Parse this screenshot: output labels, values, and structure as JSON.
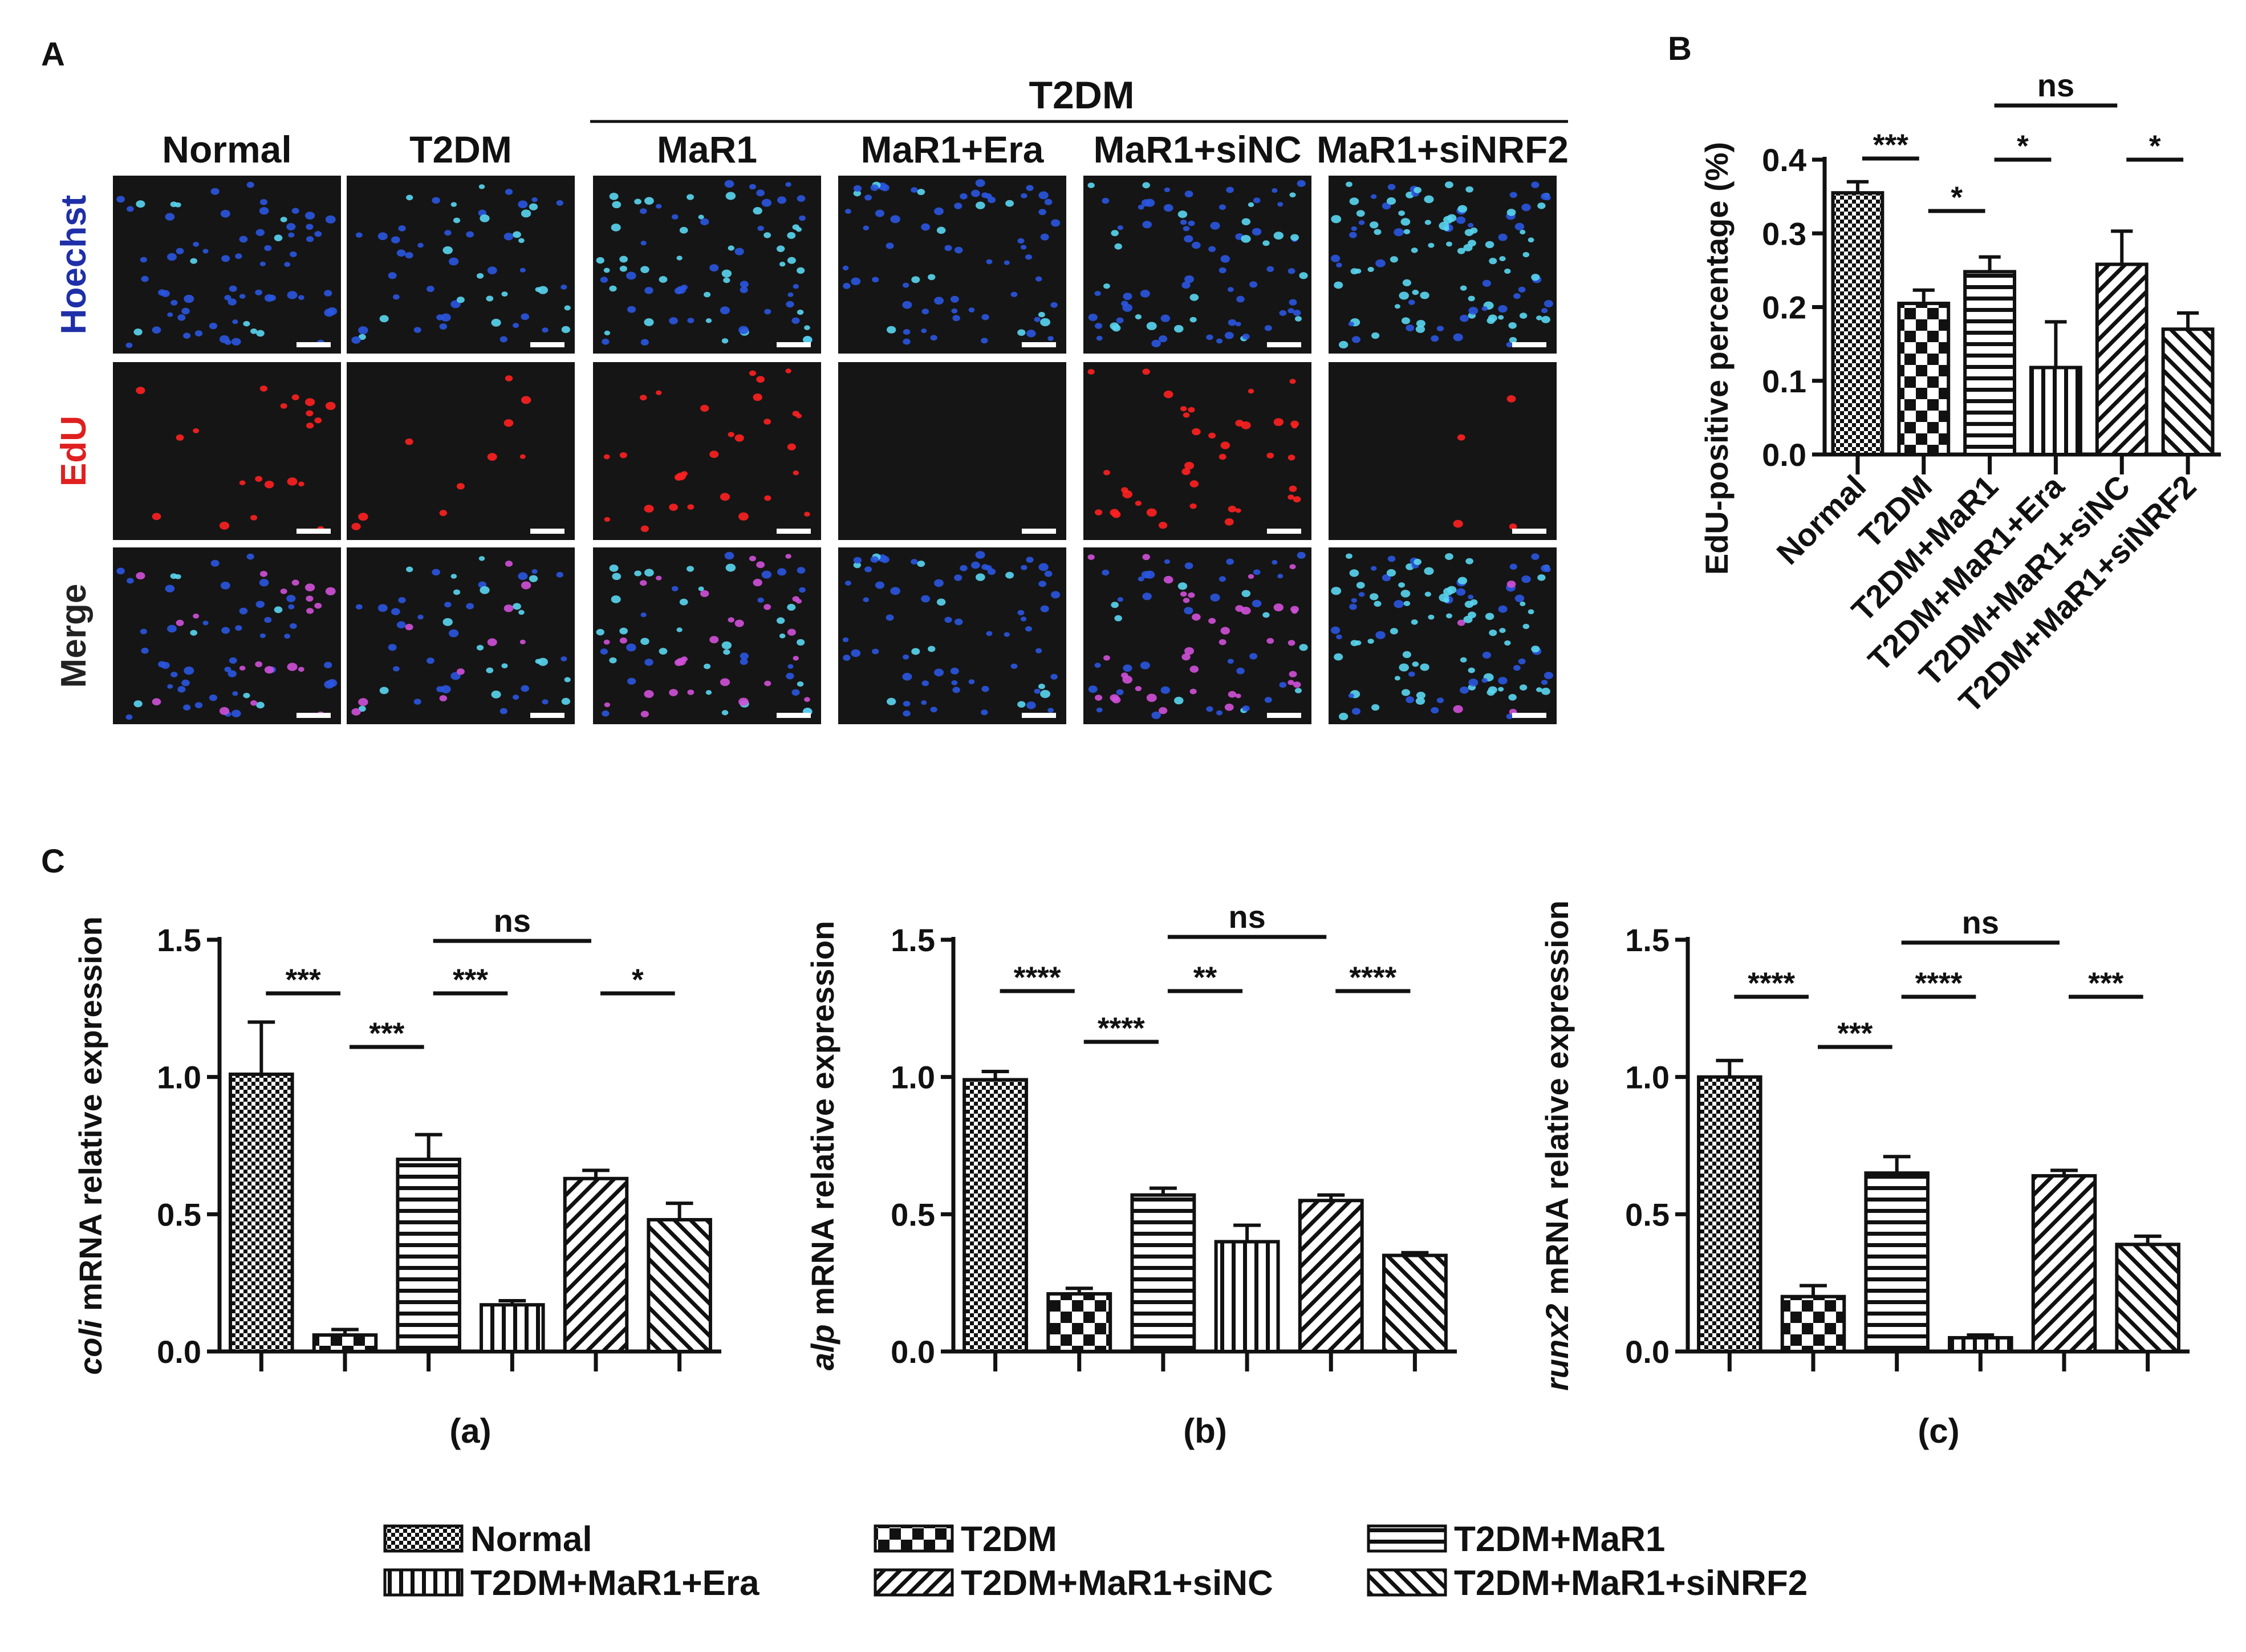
{
  "panel_labels": {
    "a": "A",
    "b": "B",
    "c": "C"
  },
  "panel_a": {
    "group_header": "T2DM",
    "column_labels": [
      "Normal",
      "T2DM",
      "MaR1",
      "MaR1+Era",
      "MaR1+siNC",
      "MaR1+siNRF2"
    ],
    "row_labels": [
      "Hoechst",
      "EdU",
      "Merge"
    ],
    "row_label_colors": [
      "#1f2fa8",
      "#e02020",
      "#222222"
    ]
  },
  "chart_data": [
    {
      "id": "B",
      "type": "bar",
      "title": "",
      "xlabel": "",
      "ylabel": "EdU-positive percentage (%)",
      "ylabel_italic_prefix": "",
      "ylim": [
        0,
        0.4
      ],
      "yticks": [
        0.0,
        0.1,
        0.2,
        0.3,
        0.4
      ],
      "ytick_labels": [
        "0.0",
        "0.1",
        "0.2",
        "0.3",
        "0.4"
      ],
      "categories": [
        "Normal",
        "T2DM",
        "T2DM+MaR1",
        "T2DM+MaR1+Era",
        "T2DM+MaR1+siNC",
        "T2DM+MaR1+siNRF2"
      ],
      "values": [
        0.355,
        0.205,
        0.248,
        0.118,
        0.258,
        0.17
      ],
      "errors": [
        0.015,
        0.018,
        0.02,
        0.062,
        0.045,
        0.022
      ],
      "significance": [
        {
          "from": 0,
          "to": 1,
          "label": "***"
        },
        {
          "from": 1,
          "to": 2,
          "label": "*"
        },
        {
          "from": 2,
          "to": 3,
          "label": "*"
        },
        {
          "from": 2,
          "to": 4,
          "label": "ns"
        },
        {
          "from": 4,
          "to": 5,
          "label": "*"
        }
      ]
    },
    {
      "id": "C-a",
      "type": "bar",
      "title": "",
      "sublabel": "(a)",
      "ylabel_italic_prefix": "coli",
      "ylabel": " mRNA relative expression",
      "ylim": [
        0,
        1.5
      ],
      "yticks": [
        0.0,
        0.5,
        1.0,
        1.5
      ],
      "ytick_labels": [
        "0.0",
        "0.5",
        "1.0",
        "1.5"
      ],
      "categories": [
        "Normal",
        "T2DM",
        "T2DM+MaR1",
        "T2DM+MaR1+Era",
        "T2DM+MaR1+siNC",
        "T2DM+MaR1+siNRF2"
      ],
      "values": [
        1.01,
        0.06,
        0.7,
        0.17,
        0.63,
        0.48
      ],
      "errors": [
        0.19,
        0.02,
        0.09,
        0.015,
        0.03,
        0.06
      ],
      "significance": [
        {
          "from": 0,
          "to": 1,
          "label": "***"
        },
        {
          "from": 1,
          "to": 2,
          "label": "***"
        },
        {
          "from": 2,
          "to": 3,
          "label": "***"
        },
        {
          "from": 2,
          "to": 4,
          "label": "ns"
        },
        {
          "from": 4,
          "to": 5,
          "label": "*"
        }
      ]
    },
    {
      "id": "C-b",
      "type": "bar",
      "title": "",
      "sublabel": "(b)",
      "ylabel_italic_prefix": "alp",
      "ylabel": " mRNA relative expression",
      "ylim": [
        0,
        1.5
      ],
      "yticks": [
        0.0,
        0.5,
        1.0,
        1.5
      ],
      "ytick_labels": [
        "0.0",
        "0.5",
        "1.0",
        "1.5"
      ],
      "categories": [
        "Normal",
        "T2DM",
        "T2DM+MaR1",
        "T2DM+MaR1+Era",
        "T2DM+MaR1+siNC",
        "T2DM+MaR1+siNRF2"
      ],
      "values": [
        0.99,
        0.21,
        0.57,
        0.4,
        0.55,
        0.35
      ],
      "errors": [
        0.03,
        0.02,
        0.025,
        0.06,
        0.02,
        0.01
      ],
      "significance": [
        {
          "from": 0,
          "to": 1,
          "label": "****"
        },
        {
          "from": 1,
          "to": 2,
          "label": "****"
        },
        {
          "from": 2,
          "to": 3,
          "label": "**"
        },
        {
          "from": 2,
          "to": 4,
          "label": "ns"
        },
        {
          "from": 4,
          "to": 5,
          "label": "****"
        }
      ]
    },
    {
      "id": "C-c",
      "type": "bar",
      "title": "",
      "sublabel": "(c)",
      "ylabel_italic_prefix": "runx2",
      "ylabel": " mRNA relative expression",
      "ylim": [
        0,
        1.5
      ],
      "yticks": [
        0.0,
        0.5,
        1.0,
        1.5
      ],
      "ytick_labels": [
        "0.0",
        "0.5",
        "1.0",
        "1.5"
      ],
      "categories": [
        "Normal",
        "T2DM",
        "T2DM+MaR1",
        "T2DM+MaR1+Era",
        "T2DM+MaR1+siNC",
        "T2DM+MaR1+siNRF2"
      ],
      "values": [
        1.0,
        0.2,
        0.65,
        0.05,
        0.64,
        0.39
      ],
      "errors": [
        0.06,
        0.04,
        0.06,
        0.01,
        0.02,
        0.03
      ],
      "significance": [
        {
          "from": 0,
          "to": 1,
          "label": "****"
        },
        {
          "from": 1,
          "to": 2,
          "label": "***"
        },
        {
          "from": 2,
          "to": 3,
          "label": "****"
        },
        {
          "from": 2,
          "to": 4,
          "label": "ns"
        },
        {
          "from": 4,
          "to": 5,
          "label": "***"
        }
      ]
    }
  ],
  "legend": {
    "entries": [
      "Normal",
      "T2DM",
      "T2DM+MaR1",
      "T2DM+MaR1+Era",
      "T2DM+MaR1+siNC",
      "T2DM+MaR1+siNRF2"
    ],
    "patterns": [
      "fine-check",
      "checker",
      "horizontal",
      "vertical",
      "diag-up",
      "diag-down"
    ]
  },
  "colors": {
    "ink": "#111111",
    "micrograph_bg": "#151515",
    "hoechst": "#2a55e0",
    "hoechst_bright": "#59d6f0",
    "edu": "#ff2020",
    "merge_pink": "#d050d8"
  }
}
